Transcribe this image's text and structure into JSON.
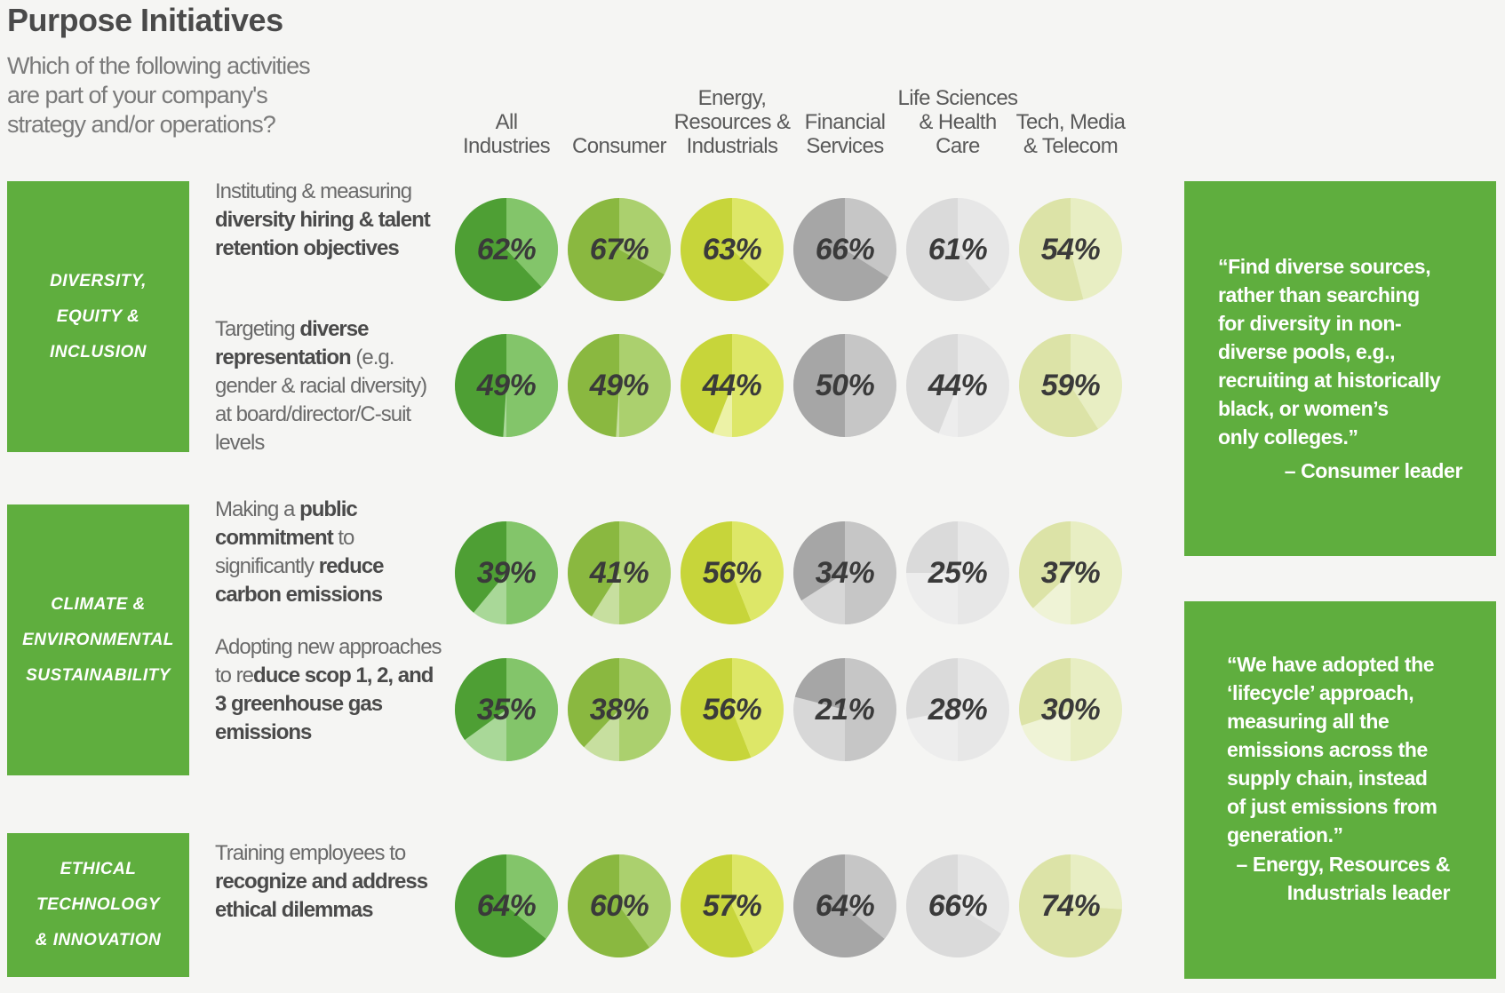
{
  "title": "Purpose Initiatives",
  "question": "Which of the following activities are part of your company's strategy and/or operations?",
  "colors": {
    "brand_green": "#5fae3e",
    "industry_palettes": [
      {
        "dark": "#4e9f34",
        "light": "#83c56a",
        "rest": "#a9d898"
      },
      {
        "dark": "#8ab840",
        "light": "#abd06e",
        "rest": "#c7df9f"
      },
      {
        "dark": "#c7d53a",
        "light": "#dde768",
        "rest": "#ecf2a6"
      },
      {
        "dark": "#a6a6a6",
        "light": "#c6c6c6",
        "rest": "#d7d7d7"
      },
      {
        "dark": "#dadada",
        "light": "#e7e7e7",
        "rest": "#ededed"
      },
      {
        "dark": "#dce3a7",
        "light": "#e8eec3",
        "rest": "#eff3d6"
      }
    ]
  },
  "chart_data": {
    "type": "table",
    "industries": [
      "All Industries",
      "Consumer",
      "Energy, Resources & Industrials",
      "Financial Services",
      "Life Sciences & Health Care",
      "Tech, Media & Telecom"
    ],
    "industry_headers": [
      "All\nIndustries",
      "Consumer",
      "Energy,\nResources &\nIndustrials",
      "Financial\nServices",
      "Life Sciences\n& Health\nCare",
      "Tech, Media\n& Telecom"
    ],
    "categories": [
      {
        "label": "DIVERSITY,\nEQUITY &\nINCLUSION"
      },
      {
        "label": "CLIMATE &\nENVIRONMENTAL\nSUSTAINABILITY"
      },
      {
        "label": "ETHICAL\nTECHNOLOGY\n& INNOVATION"
      }
    ],
    "rows": [
      {
        "category": 0,
        "activity_html": "Instituting &amp; measuring <b>diversity hiring &amp; talent retention objectives</b>",
        "values": [
          62,
          67,
          63,
          66,
          61,
          54
        ]
      },
      {
        "category": 0,
        "activity_html": "Targeting <b>diverse representation</b> (e.g. gender &amp; racial diversity) at board/director/C-suit levels",
        "values": [
          49,
          49,
          44,
          50,
          44,
          59
        ]
      },
      {
        "category": 1,
        "activity_html": "Making a <b>public commitment</b> to significantly <b>reduce carbon emissions</b>",
        "values": [
          39,
          41,
          56,
          34,
          25,
          37
        ]
      },
      {
        "category": 1,
        "activity_html": "Adopting new approaches to re<b>duce scop 1, 2, and 3 greenhouse gas emissions</b>",
        "values": [
          35,
          38,
          56,
          21,
          28,
          30
        ]
      },
      {
        "category": 2,
        "activity_html": "Training employees to <b>recognize and address ethical dilemmas</b>",
        "values": [
          64,
          60,
          57,
          64,
          66,
          74
        ]
      }
    ]
  },
  "quotes": [
    {
      "text": "“Find diverse sources,\nrather than searching\nfor diversity in non-\ndiverse pools, e.g.,\nrecruiting at historically\nblack, or women’s\nonly colleges.”",
      "attribution": "– Consumer leader"
    },
    {
      "text": "“We have adopted the\n‘lifecycle’ approach,\nmeasuring all the\nemissions across the\nsupply chain, instead\nof just emissions from\ngeneration.”",
      "attribution": "– Energy, Resources &\nIndustrials leader"
    }
  ]
}
